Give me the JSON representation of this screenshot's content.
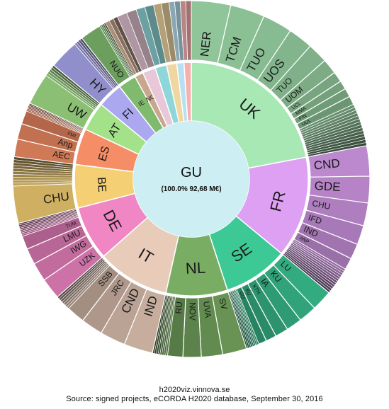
{
  "chart_data": {
    "type": "sunburst",
    "center": {
      "label": "GU",
      "sublabel": "(100.0% 92,68 M€)"
    },
    "inner_ring": [
      {
        "name": "UK",
        "value": 22.0,
        "color": "#a8e8b4"
      },
      {
        "name": "FR",
        "value": 14.0,
        "color": "#dda0f2"
      },
      {
        "name": "SE",
        "value": 9.0,
        "color": "#3cc996"
      },
      {
        "name": "NL",
        "value": 8.5,
        "color": "#7aad64"
      },
      {
        "name": "IT",
        "value": 10.0,
        "color": "#e9cbb9"
      },
      {
        "name": "DE",
        "value": 7.5,
        "color": "#f186c4"
      },
      {
        "name": "BE",
        "value": 6.0,
        "color": "#f4cf73"
      },
      {
        "name": "ES",
        "value": 5.0,
        "color": "#f58e66"
      },
      {
        "name": "AT",
        "value": 4.0,
        "color": "#a3e289"
      },
      {
        "name": "FI",
        "value": 3.5,
        "color": "#aba8ef"
      },
      {
        "name": "IE",
        "value": 2.5,
        "color": "#7fba6f"
      },
      {
        "name": "NO",
        "value": 1.2,
        "color": "#c9a68e"
      },
      {
        "name": "",
        "value": 1.8,
        "color": "#e8c8d8"
      },
      {
        "name": "",
        "value": 1.6,
        "color": "#8fd6d8"
      },
      {
        "name": "",
        "value": 1.4,
        "color": "#f0d6a0"
      },
      {
        "name": "",
        "value": 1.0,
        "color": "#b8e0f0"
      },
      {
        "name": "",
        "value": 1.0,
        "color": "#f7b0b0"
      }
    ],
    "outer_ring": [
      {
        "parent": "UK",
        "labels": [
          "NER",
          "TCM",
          "TUO",
          "UOS",
          "TUO",
          "UOM",
          "UCL",
          "MMA",
          "PIN",
          "UUL"
        ],
        "tail_count": 14
      },
      {
        "parent": "FR",
        "labels": [
          "CND",
          "GDE",
          "CHU",
          "IFD",
          "IND",
          "ANP"
        ],
        "tail_count": 12
      },
      {
        "parent": "SE",
        "labels": [
          "LU",
          "KU",
          "IA",
          "KTH",
          "KU",
          "GU"
        ],
        "tail_count": 8
      },
      {
        "parent": "NL",
        "labels": [
          "SV",
          "UVA",
          "NOV",
          "RU"
        ],
        "tail_count": 8
      },
      {
        "parent": "IT",
        "labels": [
          "IND",
          "CND",
          "JRC",
          "SSB"
        ],
        "tail_count": 7
      },
      {
        "parent": "DE",
        "labels": [
          "UZK",
          "IWG",
          "LMU",
          "TUM"
        ],
        "tail_count": 8
      },
      {
        "parent": "BE",
        "labels": [
          "CHU"
        ],
        "tail_count": 10
      },
      {
        "parent": "ES",
        "labels": [
          "AEC",
          "Anp",
          "FMI"
        ],
        "tail_count": 6
      },
      {
        "parent": "AT",
        "labels": [
          "UW"
        ],
        "tail_count": 5
      },
      {
        "parent": "FI",
        "labels": [
          "HY"
        ],
        "tail_count": 4
      },
      {
        "parent": "IE",
        "labels": [
          "NUO"
        ],
        "tail_count": 4
      },
      {
        "parent": "NO",
        "labels": [],
        "tail_count": 3
      }
    ]
  },
  "footer": {
    "line1": "h2020viz.vinnova.se",
    "line2": "Source: signed projects, eCORDA H2020 database, September 30, 2016"
  }
}
